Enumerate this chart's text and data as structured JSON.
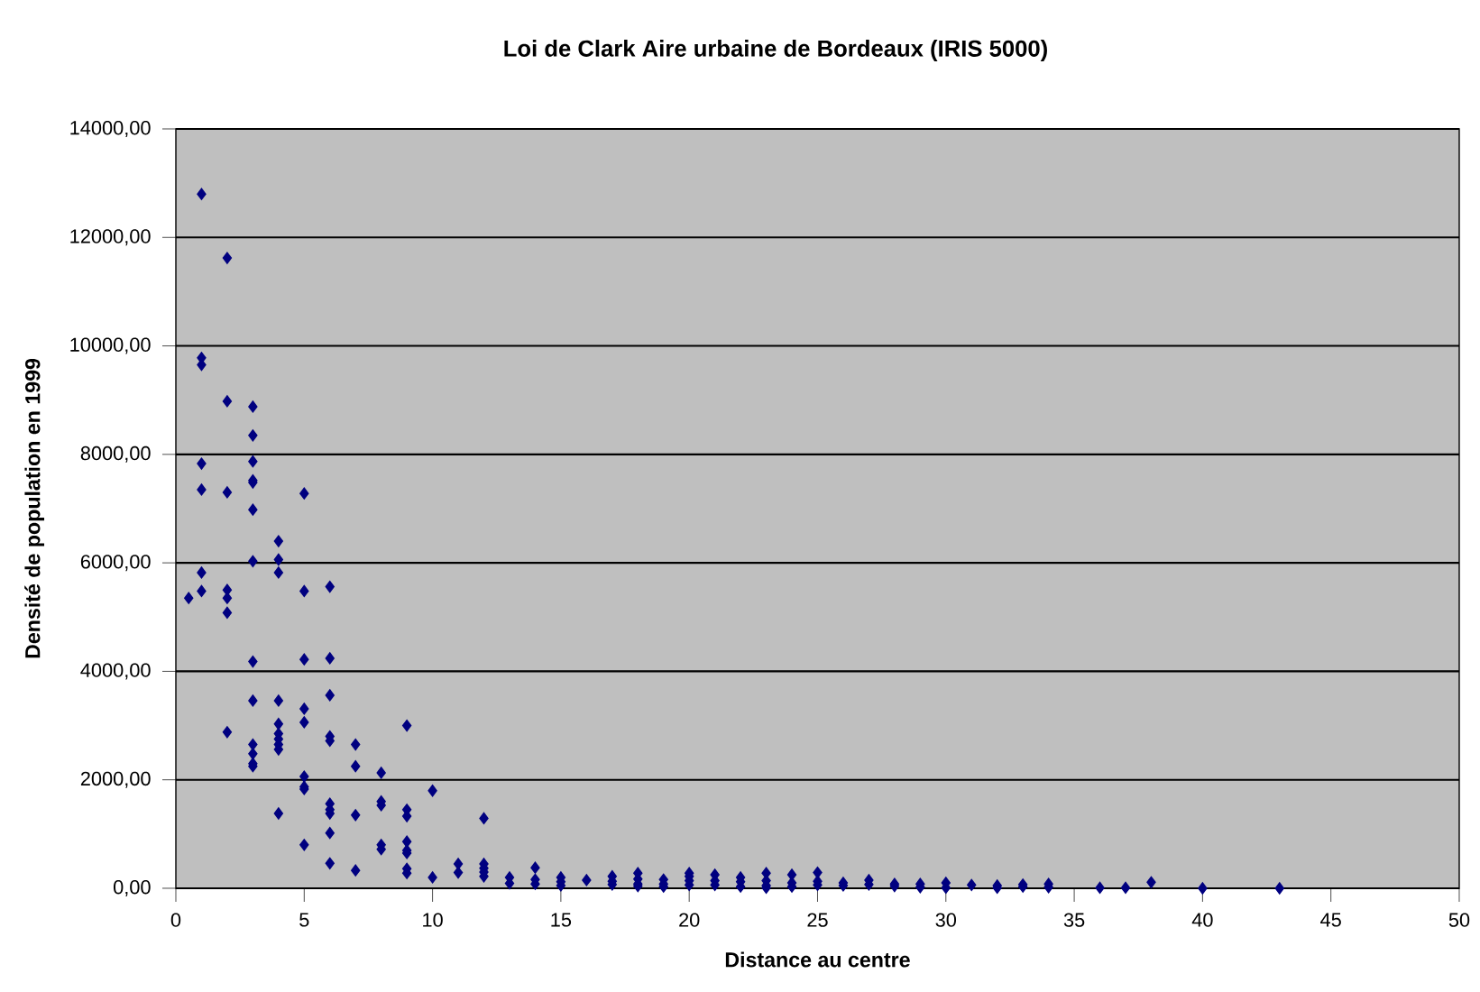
{
  "chart_data": {
    "type": "scatter",
    "title": "Loi de Clark Aire urbaine de Bordeaux (IRIS 5000)",
    "xlabel": "Distance au centre",
    "ylabel": "Densité de population en 1999",
    "x": [
      0.5,
      1,
      1,
      1,
      1,
      1,
      1,
      1,
      2,
      2,
      2,
      2,
      2,
      2,
      2,
      3,
      3,
      3,
      3,
      3,
      3,
      3,
      3,
      3,
      3,
      3,
      3,
      3,
      4,
      4,
      4,
      4,
      4,
      4,
      4,
      4,
      4,
      4,
      5,
      5,
      5,
      5,
      5,
      5,
      5,
      5,
      5,
      6,
      6,
      6,
      6,
      6,
      6,
      6,
      6,
      6,
      6,
      7,
      7,
      7,
      7,
      8,
      8,
      8,
      8,
      8,
      9,
      9,
      9,
      9,
      9,
      9,
      9,
      9,
      10,
      10,
      11,
      11,
      12,
      12,
      12,
      12,
      12,
      13,
      13,
      14,
      14,
      14,
      15,
      15,
      15,
      16,
      17,
      17,
      17,
      18,
      18,
      18,
      18,
      19,
      19,
      19,
      20,
      20,
      20,
      20,
      21,
      21,
      21,
      22,
      22,
      22,
      23,
      23,
      23,
      23,
      24,
      24,
      24,
      25,
      25,
      25,
      26,
      26,
      27,
      27,
      28,
      28,
      29,
      29,
      30,
      30,
      31,
      32,
      32,
      33,
      33,
      34,
      34,
      36,
      37,
      38,
      40,
      43
    ],
    "values": [
      5350,
      12800,
      9780,
      9650,
      7830,
      7350,
      5820,
      5480,
      11620,
      8980,
      7300,
      5500,
      5350,
      5080,
      2880,
      8880,
      8350,
      7870,
      7520,
      7480,
      6980,
      6030,
      4180,
      3460,
      2650,
      2480,
      2300,
      2250,
      6400,
      6060,
      5820,
      3460,
      3030,
      2850,
      2750,
      2650,
      2560,
      1380,
      7280,
      5480,
      4220,
      3310,
      3060,
      2060,
      1870,
      1830,
      800,
      5560,
      4240,
      3560,
      2800,
      2720,
      1560,
      1450,
      1380,
      1020,
      460,
      2650,
      2250,
      1350,
      330,
      2130,
      1600,
      1530,
      800,
      720,
      3000,
      1450,
      1330,
      860,
      700,
      650,
      360,
      280,
      1800,
      200,
      450,
      290,
      1290,
      450,
      370,
      300,
      220,
      200,
      90,
      380,
      160,
      80,
      200,
      120,
      50,
      150,
      220,
      130,
      70,
      280,
      170,
      80,
      40,
      160,
      80,
      30,
      280,
      220,
      140,
      60,
      250,
      140,
      60,
      200,
      120,
      30,
      280,
      140,
      50,
      10,
      250,
      100,
      30,
      290,
      130,
      60,
      100,
      50,
      150,
      70,
      80,
      40,
      80,
      20,
      100,
      10,
      60,
      50,
      10,
      70,
      30,
      80,
      20,
      10,
      10,
      110,
      0,
      0
    ],
    "color": "#000080",
    "marker": "diamond",
    "grid": "y",
    "xlim": [
      0,
      50
    ],
    "xticks": [
      0,
      5,
      10,
      15,
      20,
      25,
      30,
      35,
      40,
      45,
      50
    ],
    "ylim": [
      0,
      14000
    ],
    "yticks": [
      {
        "value": 0,
        "label": "0,00"
      },
      {
        "value": 2000,
        "label": "2000,00"
      },
      {
        "value": 4000,
        "label": "4000,00"
      },
      {
        "value": 6000,
        "label": "6000,00"
      },
      {
        "value": 8000,
        "label": "8000,00"
      },
      {
        "value": 10000,
        "label": "10000,00"
      },
      {
        "value": 12000,
        "label": "12000,00"
      },
      {
        "value": 14000,
        "label": "14000,00"
      }
    ]
  }
}
